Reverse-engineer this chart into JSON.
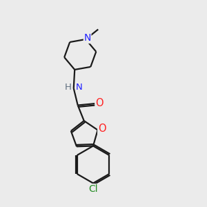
{
  "bg_color": "#ebebeb",
  "bond_color": "#1a1a1a",
  "bond_lw": 1.6,
  "atom_colors": {
    "N": "#2020ff",
    "O": "#ff2020",
    "Cl": "#228b22",
    "C": "#1a1a1a",
    "H": "#607080"
  },
  "font_size": 9.5,
  "figsize": [
    3.0,
    3.0
  ],
  "dpi": 100
}
